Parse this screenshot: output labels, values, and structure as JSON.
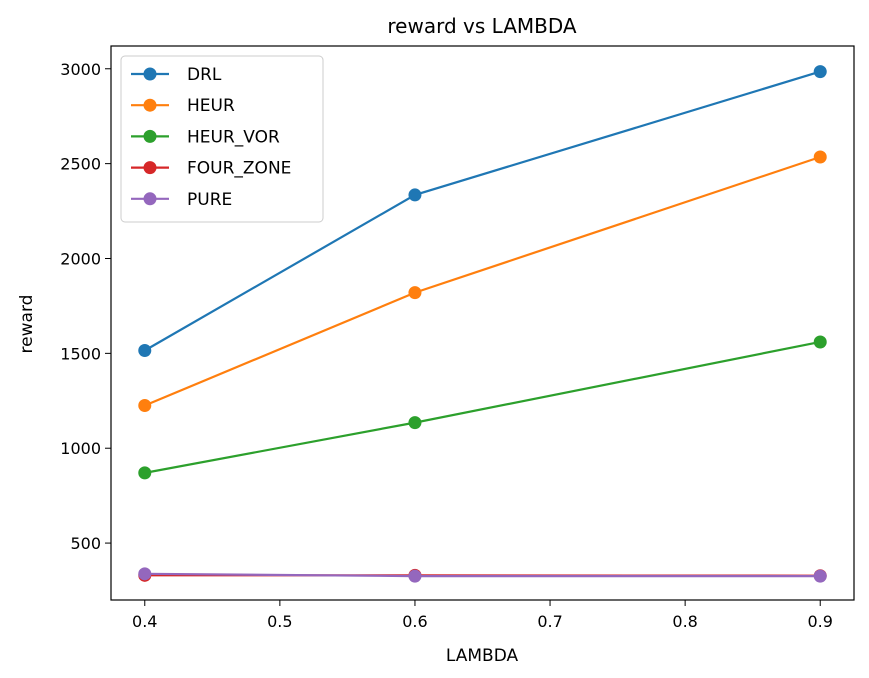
{
  "chart_data": {
    "type": "line",
    "title": "reward vs LAMBDA",
    "xlabel": "LAMBDA",
    "ylabel": "reward",
    "x": [
      0.4,
      0.6,
      0.9
    ],
    "xlim": [
      0.375,
      0.925
    ],
    "ylim": [
      200,
      3120
    ],
    "xticks": [
      0.4,
      0.5,
      0.6,
      0.7,
      0.8,
      0.9
    ],
    "xtick_labels": [
      "0.4",
      "0.5",
      "0.6",
      "0.7",
      "0.8",
      "0.9"
    ],
    "yticks": [
      500,
      1000,
      1500,
      2000,
      2500,
      3000
    ],
    "ytick_labels": [
      "500",
      "1000",
      "1500",
      "2000",
      "2500",
      "3000"
    ],
    "grid": false,
    "legend_position": "top-left",
    "series": [
      {
        "name": "DRL",
        "color": "#1f77b4",
        "values": [
          1515,
          2335,
          2985
        ]
      },
      {
        "name": "HEUR",
        "color": "#ff7f0e",
        "values": [
          1225,
          1820,
          2535
        ]
      },
      {
        "name": "HEUR_VOR",
        "color": "#2ca02c",
        "values": [
          870,
          1135,
          1560
        ]
      },
      {
        "name": "FOUR_ZONE",
        "color": "#d62728",
        "values": [
          330,
          330,
          328
        ]
      },
      {
        "name": "PURE",
        "color": "#9467bd",
        "values": [
          338,
          326,
          326
        ]
      }
    ]
  }
}
